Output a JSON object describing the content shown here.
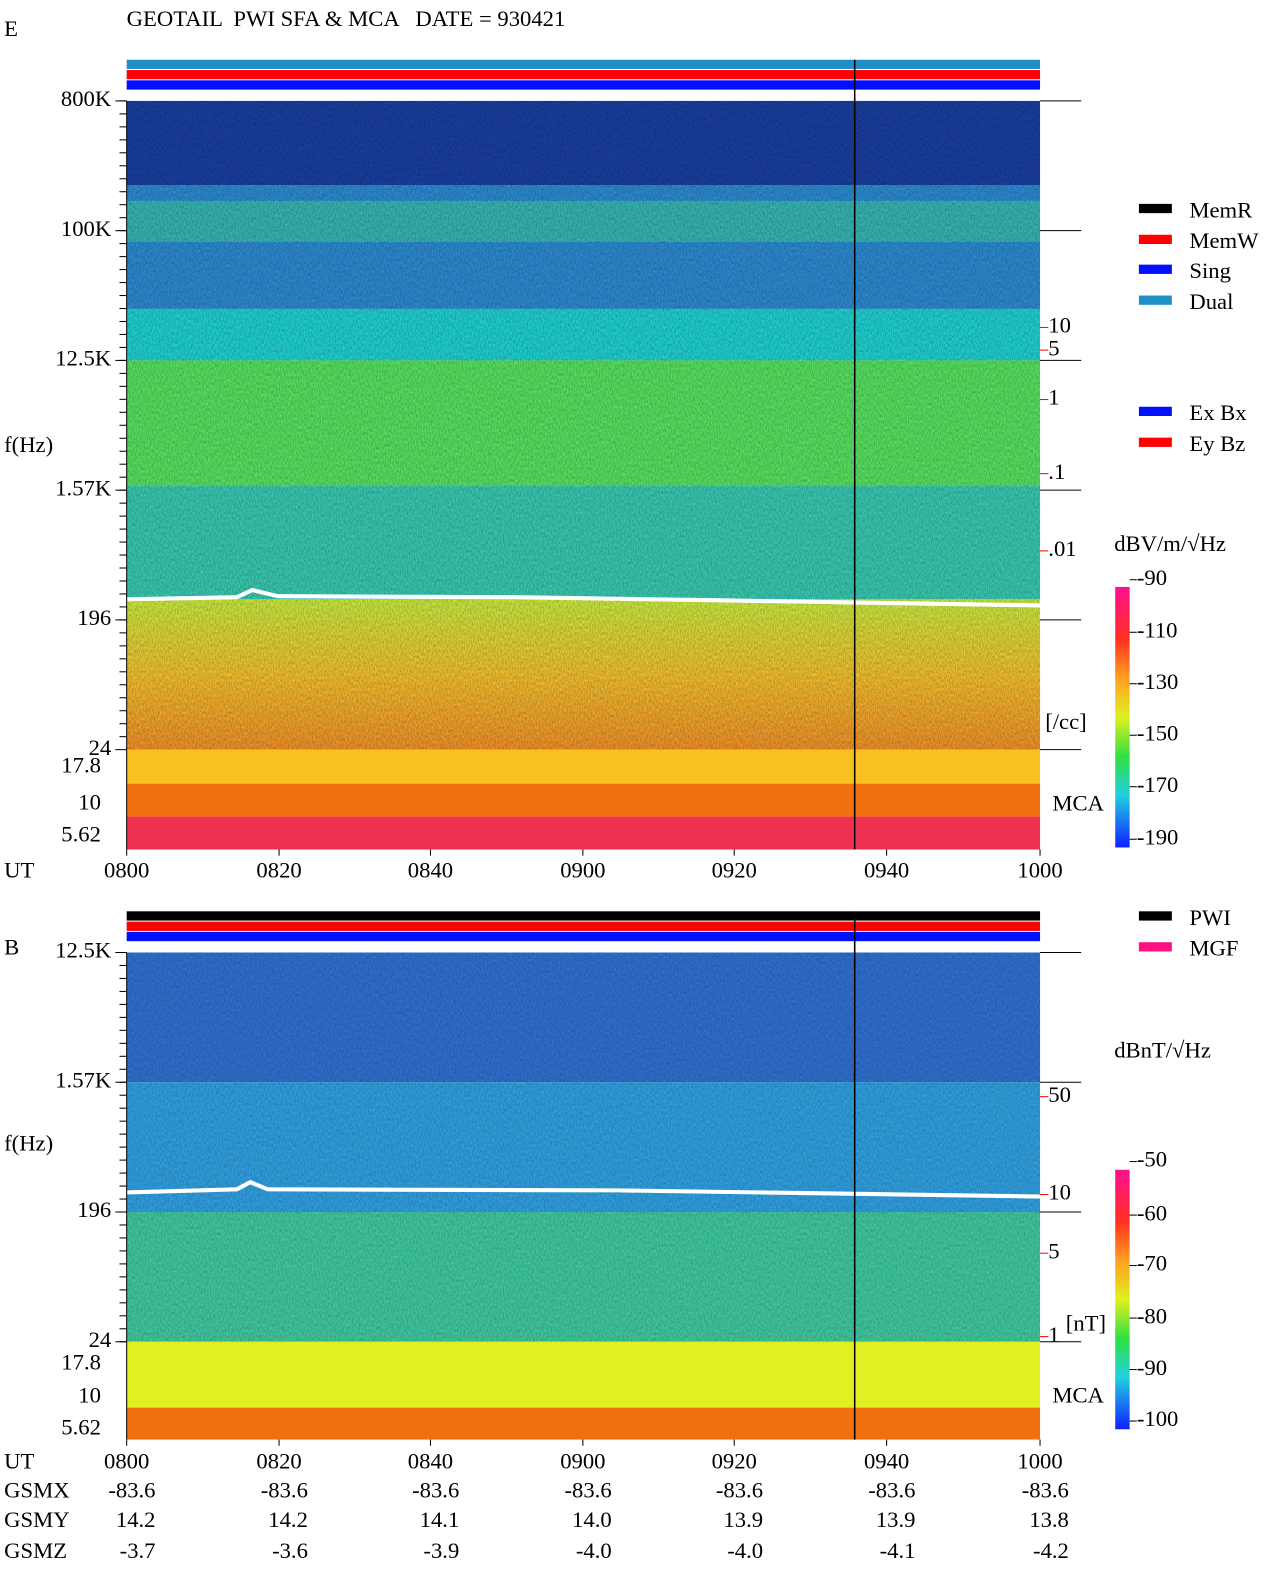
{
  "header": {
    "title": "GEOTAIL  PWI SFA & MCA   DATE = 930421"
  },
  "panels": [
    {
      "label": "E",
      "y_label": "f(Hz)",
      "freq_ticks": [
        "800K",
        "100K",
        "12.5K",
        "1.57K",
        "196",
        "24"
      ],
      "mca_ticks": [
        "17.8",
        "10",
        "5.62"
      ],
      "mca_label": "MCA",
      "time_label": "UT",
      "time_ticks": [
        "0800",
        "0820",
        "0840",
        "0900",
        "0920",
        "0940",
        "1000"
      ],
      "legend": [
        {
          "name": "MemR",
          "color": "#000000"
        },
        {
          "name": "MemW",
          "color": "#ff0000"
        },
        {
          "name": "Sing",
          "color": "#0010ff"
        },
        {
          "name": "Dual",
          "color": "#2090c8"
        }
      ],
      "legend2": [
        {
          "name": "Ex Bx",
          "color": "#0010ff"
        },
        {
          "name": "Ey Bz",
          "color": "#ff0000"
        }
      ],
      "scale_ticks": [
        "10",
        "5",
        "1",
        ".1",
        ".01"
      ],
      "scale_unit": "[/cc]",
      "colorbar_unit": "dBV/m/√Hz",
      "colorbar_ticks": [
        "-90",
        "-110",
        "-130",
        "-150",
        "-170",
        "-190"
      ]
    },
    {
      "label": "B",
      "y_label": "f(Hz)",
      "freq_ticks": [
        "12.5K",
        "1.57K",
        "196",
        "24"
      ],
      "mca_ticks": [
        "17.8",
        "10",
        "5.62"
      ],
      "mca_label": "MCA",
      "time_label": "UT",
      "time_ticks": [
        "0800",
        "0820",
        "0840",
        "0900",
        "0920",
        "0940",
        "1000"
      ],
      "legend": [
        {
          "name": "PWI",
          "color": "#000000"
        },
        {
          "name": "MGF",
          "color": "#ff1080"
        }
      ],
      "scale_ticks": [
        "50",
        "10",
        "5",
        "1"
      ],
      "scale_unit": "[nT]",
      "colorbar_unit": "dBnT/√Hz",
      "colorbar_ticks": [
        "-50",
        "-60",
        "-70",
        "-80",
        "-90",
        "-100"
      ]
    }
  ],
  "orbit": {
    "rows": [
      {
        "label": "GSMX",
        "values": [
          "-83.6",
          "-83.6",
          "-83.6",
          "-83.6",
          "-83.6",
          "-83.6",
          "-83.6"
        ]
      },
      {
        "label": "GSMY",
        "values": [
          "14.2",
          "14.2",
          "14.1",
          "14.0",
          "13.9",
          "13.9",
          "13.8"
        ]
      },
      {
        "label": "GSMZ",
        "values": [
          "-3.7",
          "-3.6",
          "-3.9",
          "-4.0",
          "-4.0",
          "-4.1",
          "-4.2"
        ]
      }
    ]
  }
}
